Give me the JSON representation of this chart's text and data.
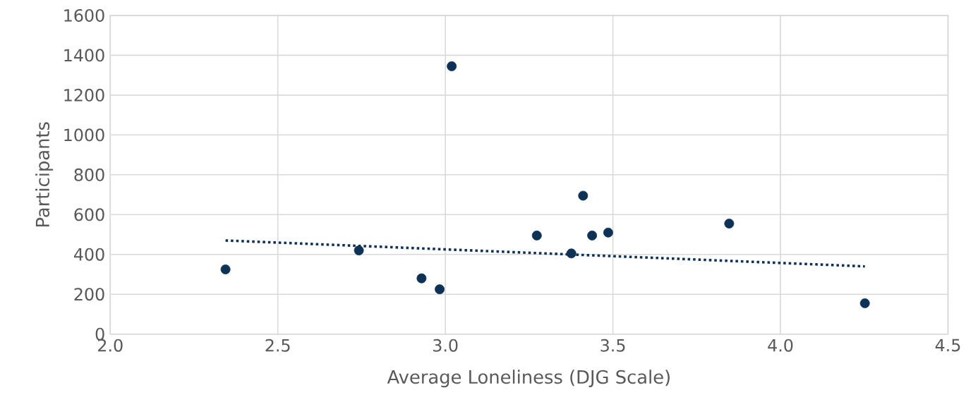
{
  "chart_data": {
    "type": "scatter",
    "xlabel": "Average Loneliness (DJG Scale)",
    "ylabel": "Participants",
    "xlim": [
      2.0,
      4.5
    ],
    "ylim": [
      0,
      1600
    ],
    "xticks": [
      {
        "value": 2.0,
        "label": "2.0"
      },
      {
        "value": 2.5,
        "label": "2.5"
      },
      {
        "value": 3.0,
        "label": "3.0"
      },
      {
        "value": 3.5,
        "label": "3.5"
      },
      {
        "value": 4.0,
        "label": "4.0"
      },
      {
        "value": 4.5,
        "label": "4.5"
      }
    ],
    "yticks": [
      0,
      200,
      400,
      600,
      800,
      1000,
      1200,
      1400,
      1600
    ],
    "grid": true,
    "series": [
      {
        "color": "#0e3256",
        "x": [
          2.344,
          2.742,
          2.929,
          2.983,
          3.019,
          3.273,
          3.376,
          3.411,
          3.438,
          3.486,
          3.847,
          4.252
        ],
        "values": [
          325,
          420,
          280,
          225,
          1345,
          495,
          405,
          695,
          495,
          510,
          555,
          155
        ]
      },
      {
        "type": "line",
        "line_style": "dotted",
        "color": "#0e3256",
        "x": [
          2.344,
          4.252
        ],
        "values": [
          470,
          340
        ]
      }
    ]
  }
}
